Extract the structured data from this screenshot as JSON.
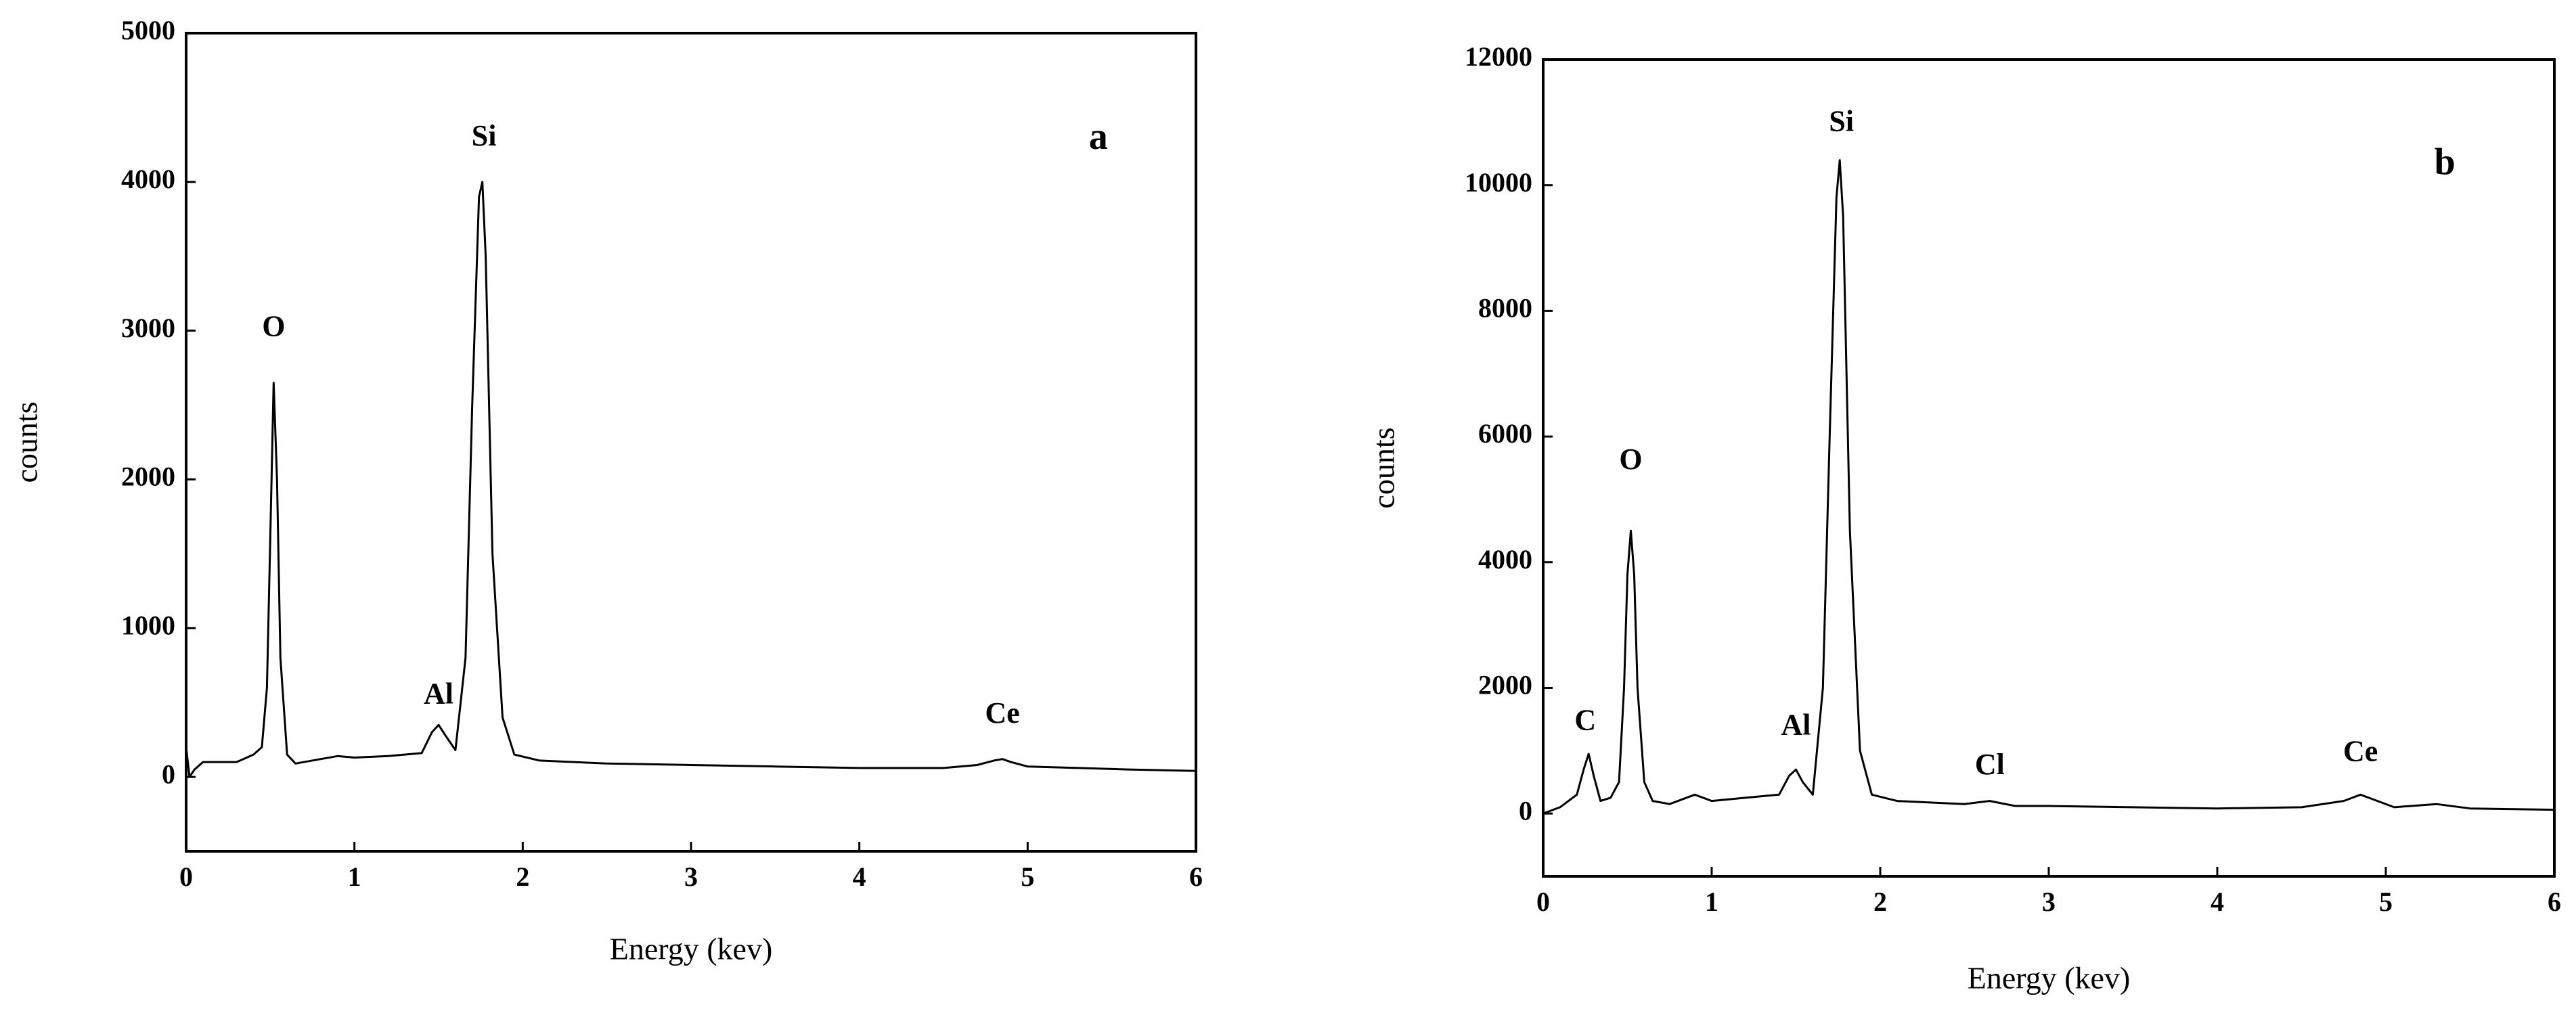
{
  "chart_data": [
    {
      "type": "line",
      "panel_label": {
        "text": "a",
        "x": 5.42,
        "y": 4280
      },
      "x_label": "Energy (kev)",
      "y_label": "counts",
      "x": [
        0,
        0.02,
        0.05,
        0.1,
        0.3,
        0.4,
        0.45,
        0.48,
        0.5,
        0.52,
        0.54,
        0.56,
        0.6,
        0.65,
        0.8,
        0.9,
        1.0,
        1.2,
        1.4,
        1.46,
        1.5,
        1.54,
        1.6,
        1.66,
        1.7,
        1.74,
        1.76,
        1.78,
        1.82,
        1.88,
        1.95,
        2.1,
        2.5,
        3.0,
        3.5,
        4.0,
        4.5,
        4.7,
        4.8,
        4.85,
        4.9,
        5.0,
        5.3,
        5.6,
        6.0
      ],
      "values": [
        200,
        0,
        50,
        100,
        100,
        150,
        200,
        600,
        1600,
        2650,
        2000,
        800,
        150,
        90,
        120,
        140,
        130,
        140,
        160,
        300,
        350,
        280,
        180,
        800,
        2500,
        3900,
        4000,
        3500,
        1500,
        400,
        150,
        110,
        90,
        80,
        70,
        60,
        60,
        80,
        110,
        120,
        100,
        70,
        60,
        50,
        40
      ],
      "color": "#000000",
      "annotations": [
        {
          "text": "O",
          "x": 0.52,
          "y": 3010
        },
        {
          "text": "Al",
          "x": 1.5,
          "y": 540
        },
        {
          "text": "Si",
          "x": 1.77,
          "y": 4290
        },
        {
          "text": "Ce",
          "x": 4.85,
          "y": 410
        }
      ],
      "xlim": [
        0,
        6
      ],
      "xticks": [
        0,
        1,
        2,
        3,
        4,
        5,
        6
      ],
      "ylim": [
        -500,
        5000
      ],
      "yticks": [
        0,
        1000,
        2000,
        3000,
        4000,
        5000
      ]
    },
    {
      "type": "line",
      "panel_label": {
        "text": "b",
        "x": 5.35,
        "y": 10315
      },
      "x_label": "Energy (kev)",
      "y_label": "counts",
      "x": [
        0,
        0.1,
        0.2,
        0.24,
        0.27,
        0.3,
        0.34,
        0.4,
        0.45,
        0.48,
        0.5,
        0.52,
        0.54,
        0.56,
        0.6,
        0.65,
        0.75,
        0.9,
        1.0,
        1.2,
        1.4,
        1.46,
        1.5,
        1.54,
        1.6,
        1.66,
        1.7,
        1.74,
        1.76,
        1.78,
        1.82,
        1.88,
        1.95,
        2.1,
        2.5,
        2.65,
        2.8,
        3.0,
        3.5,
        4.0,
        4.5,
        4.75,
        4.85,
        4.95,
        5.05,
        5.3,
        5.5,
        6.0
      ],
      "values": [
        0,
        100,
        300,
        700,
        950,
        600,
        200,
        250,
        500,
        2000,
        3800,
        4500,
        3800,
        2000,
        500,
        200,
        150,
        300,
        200,
        250,
        300,
        600,
        700,
        500,
        300,
        2000,
        6000,
        9800,
        10400,
        9500,
        4500,
        1000,
        300,
        200,
        150,
        200,
        120,
        120,
        100,
        80,
        100,
        200,
        300,
        200,
        100,
        150,
        80,
        60
      ],
      "color": "#000000",
      "annotations": [
        {
          "text": "C",
          "x": 0.25,
          "y": 1440
        },
        {
          "text": "O",
          "x": 0.52,
          "y": 5590
        },
        {
          "text": "Al",
          "x": 1.5,
          "y": 1365
        },
        {
          "text": "Si",
          "x": 1.77,
          "y": 10970
        },
        {
          "text": "Cl",
          "x": 2.65,
          "y": 735
        },
        {
          "text": "Ce",
          "x": 4.85,
          "y": 945
        }
      ],
      "xlim": [
        0,
        6
      ],
      "xticks": [
        0,
        1,
        2,
        3,
        4,
        5,
        6
      ],
      "ylim": [
        -1000,
        12000
      ],
      "yticks": [
        0,
        2000,
        4000,
        6000,
        8000,
        10000,
        12000
      ]
    }
  ]
}
